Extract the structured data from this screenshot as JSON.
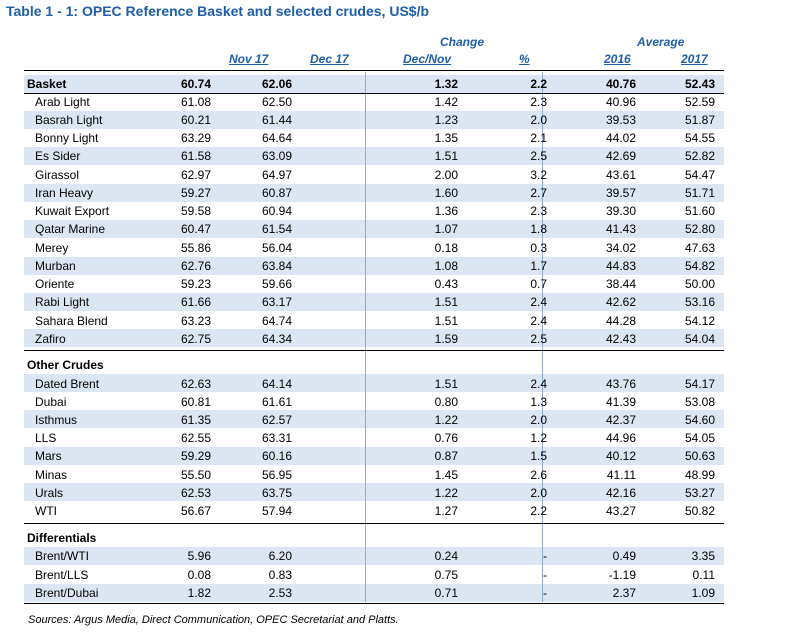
{
  "title": "Table 1 - 1: OPEC Reference Basket and selected crudes, US$/b",
  "headers": {
    "change": "Change",
    "average": "Average",
    "nov17": "Nov 17",
    "dec17": "Dec 17",
    "decnov": "Dec/Nov",
    "pct": "%",
    "y2016": "2016",
    "y2017": "2017"
  },
  "basket": {
    "name": "Basket",
    "values": [
      "60.74",
      "62.06",
      "1.32",
      "2.2",
      "40.76",
      "52.43"
    ]
  },
  "basket_crudes": [
    {
      "name": "Arab Light",
      "values": [
        "61.08",
        "62.50",
        "1.42",
        "2.3",
        "40.96",
        "52.59"
      ]
    },
    {
      "name": "Basrah Light",
      "values": [
        "60.21",
        "61.44",
        "1.23",
        "2.0",
        "39.53",
        "51.87"
      ]
    },
    {
      "name": "Bonny Light",
      "values": [
        "63.29",
        "64.64",
        "1.35",
        "2.1",
        "44.02",
        "54.55"
      ]
    },
    {
      "name": "Es Sider",
      "values": [
        "61.58",
        "63.09",
        "1.51",
        "2.5",
        "42.69",
        "52.82"
      ]
    },
    {
      "name": "Girassol",
      "values": [
        "62.97",
        "64.97",
        "2.00",
        "3.2",
        "43.61",
        "54.47"
      ]
    },
    {
      "name": "Iran Heavy",
      "values": [
        "59.27",
        "60.87",
        "1.60",
        "2.7",
        "39.57",
        "51.71"
      ]
    },
    {
      "name": "Kuwait Export",
      "values": [
        "59.58",
        "60.94",
        "1.36",
        "2.3",
        "39.30",
        "51.60"
      ]
    },
    {
      "name": "Qatar Marine",
      "values": [
        "60.47",
        "61.54",
        "1.07",
        "1.8",
        "41.43",
        "52.80"
      ]
    },
    {
      "name": "Merey",
      "values": [
        "55.86",
        "56.04",
        "0.18",
        "0.3",
        "34.02",
        "47.63"
      ]
    },
    {
      "name": "Murban",
      "values": [
        "62.76",
        "63.84",
        "1.08",
        "1.7",
        "44.83",
        "54.82"
      ]
    },
    {
      "name": "Oriente",
      "values": [
        "59.23",
        "59.66",
        "0.43",
        "0.7",
        "38.44",
        "50.00"
      ]
    },
    {
      "name": "Rabi Light",
      "values": [
        "61.66",
        "63.17",
        "1.51",
        "2.4",
        "42.62",
        "53.16"
      ]
    },
    {
      "name": "Sahara Blend",
      "values": [
        "63.23",
        "64.74",
        "1.51",
        "2.4",
        "44.28",
        "54.12"
      ]
    },
    {
      "name": "Zafiro",
      "values": [
        "62.75",
        "64.34",
        "1.59",
        "2.5",
        "42.43",
        "54.04"
      ]
    }
  ],
  "other_crudes": {
    "name": "Other Crudes",
    "rows": [
      {
        "name": "Dated Brent",
        "values": [
          "62.63",
          "64.14",
          "1.51",
          "2.4",
          "43.76",
          "54.17"
        ]
      },
      {
        "name": "Dubai",
        "values": [
          "60.81",
          "61.61",
          "0.80",
          "1.3",
          "41.39",
          "53.08"
        ]
      },
      {
        "name": "Isthmus",
        "values": [
          "61.35",
          "62.57",
          "1.22",
          "2.0",
          "42.37",
          "54.60"
        ]
      },
      {
        "name": "LLS",
        "values": [
          "62.55",
          "63.31",
          "0.76",
          "1.2",
          "44.96",
          "54.05"
        ]
      },
      {
        "name": "Mars",
        "values": [
          "59.29",
          "60.16",
          "0.87",
          "1.5",
          "40.12",
          "50.63"
        ]
      },
      {
        "name": "Minas",
        "values": [
          "55.50",
          "56.95",
          "1.45",
          "2.6",
          "41.11",
          "48.99"
        ]
      },
      {
        "name": "Urals",
        "values": [
          "62.53",
          "63.75",
          "1.22",
          "2.0",
          "42.16",
          "53.27"
        ]
      },
      {
        "name": "WTI",
        "values": [
          "56.67",
          "57.94",
          "1.27",
          "2.2",
          "43.27",
          "50.82"
        ]
      }
    ]
  },
  "differentials": {
    "name": "Differentials",
    "rows": [
      {
        "name": "Brent/WTI",
        "values": [
          "5.96",
          "6.20",
          "0.24",
          "-",
          "0.49",
          "3.35"
        ]
      },
      {
        "name": "Brent/LLS",
        "values": [
          "0.08",
          "0.83",
          "0.75",
          "-",
          "-1.19",
          "0.11"
        ]
      },
      {
        "name": "Brent/Dubai",
        "values": [
          "1.82",
          "2.53",
          "0.71",
          "-",
          "2.37",
          "1.09"
        ]
      }
    ]
  },
  "source": "Sources:  Argus Media, Direct Communication, OPEC Secretariat and Platts."
}
